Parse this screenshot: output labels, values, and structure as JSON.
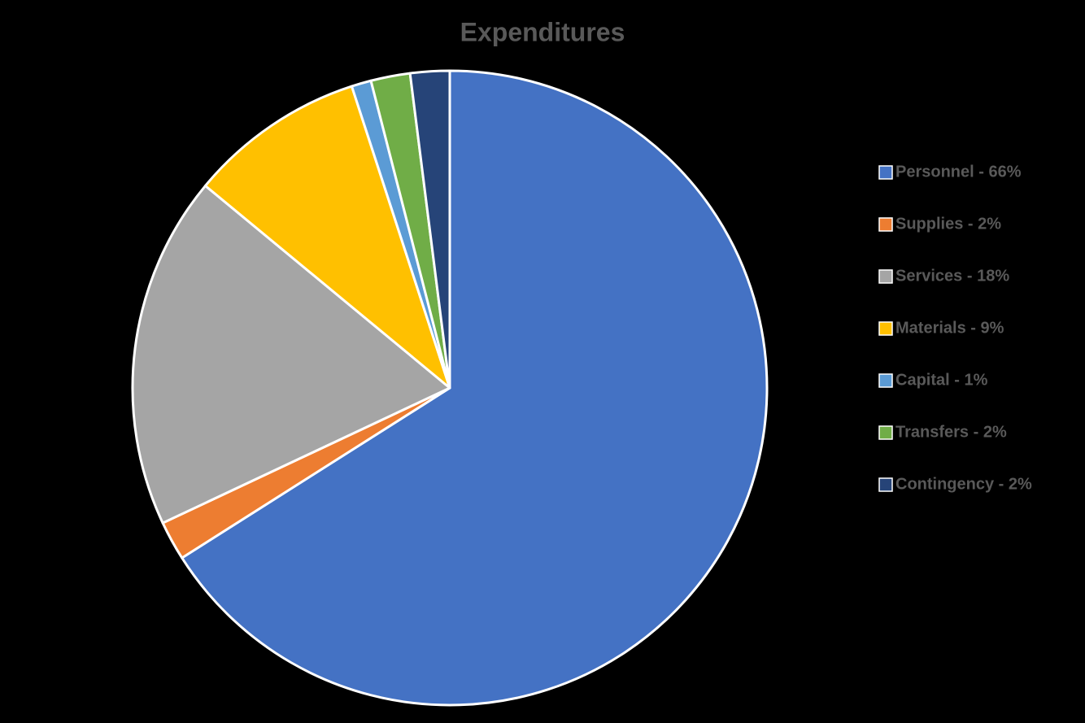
{
  "chart_data": {
    "type": "pie",
    "title": "Expenditures",
    "categories": [
      "Personnel - 66%",
      "Supplies - 2%",
      "Services - 18%",
      "Materials - 9%",
      "Capital - 1%",
      "Transfers - 2%",
      "Contingency - 2%"
    ],
    "values": [
      66,
      2,
      18,
      9,
      1,
      2,
      2
    ],
    "colors": [
      "#4472c4",
      "#ed7d31",
      "#a5a5a5",
      "#ffc000",
      "#5b9bd5",
      "#70ad47",
      "#264478"
    ],
    "legend": "right"
  }
}
